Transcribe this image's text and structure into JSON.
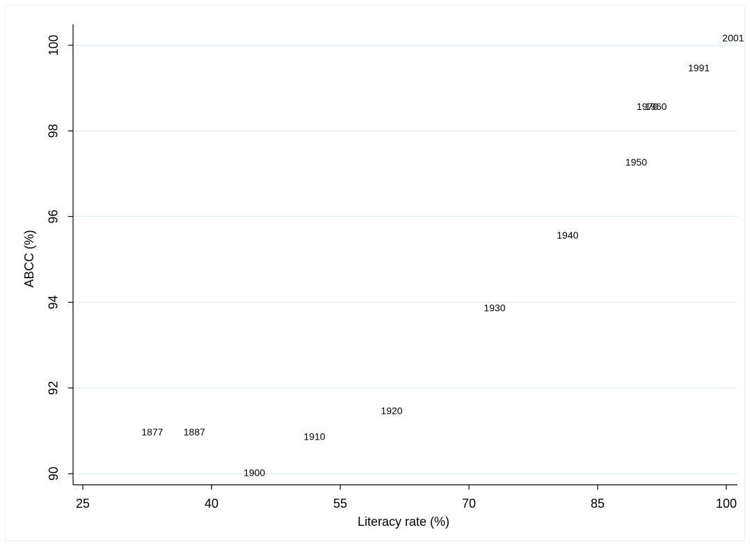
{
  "chart_data": {
    "type": "scatter",
    "marker": "label",
    "xlabel": "Literacy rate (%)",
    "ylabel": "ABCC (%)",
    "xlim": [
      25,
      100
    ],
    "ylim": [
      90,
      100
    ],
    "xticks": [
      25,
      40,
      55,
      70,
      85,
      100
    ],
    "yticks": [
      90,
      92,
      94,
      96,
      98,
      100
    ],
    "grid": "horizontal",
    "points": [
      {
        "label": "1877",
        "x": 33.1,
        "y": 90.95
      },
      {
        "label": "1887",
        "x": 38.0,
        "y": 90.95
      },
      {
        "label": "1900",
        "x": 45.0,
        "y": 90.0
      },
      {
        "label": "1910",
        "x": 52.0,
        "y": 90.85
      },
      {
        "label": "1920",
        "x": 61.0,
        "y": 91.45
      },
      {
        "label": "1930",
        "x": 73.0,
        "y": 93.85
      },
      {
        "label": "1940",
        "x": 81.5,
        "y": 95.55
      },
      {
        "label": "1950",
        "x": 89.5,
        "y": 97.25
      },
      {
        "label": "1970",
        "x": 90.8,
        "y": 98.55
      },
      {
        "label": "1960",
        "x": 91.8,
        "y": 98.55
      },
      {
        "label": "1991",
        "x": 96.8,
        "y": 99.45
      },
      {
        "label": "2001",
        "x": 100.8,
        "y": 100.15
      }
    ],
    "colors": {
      "axis": "#000000",
      "grid": "#e4eef2",
      "text": "#000000"
    }
  }
}
